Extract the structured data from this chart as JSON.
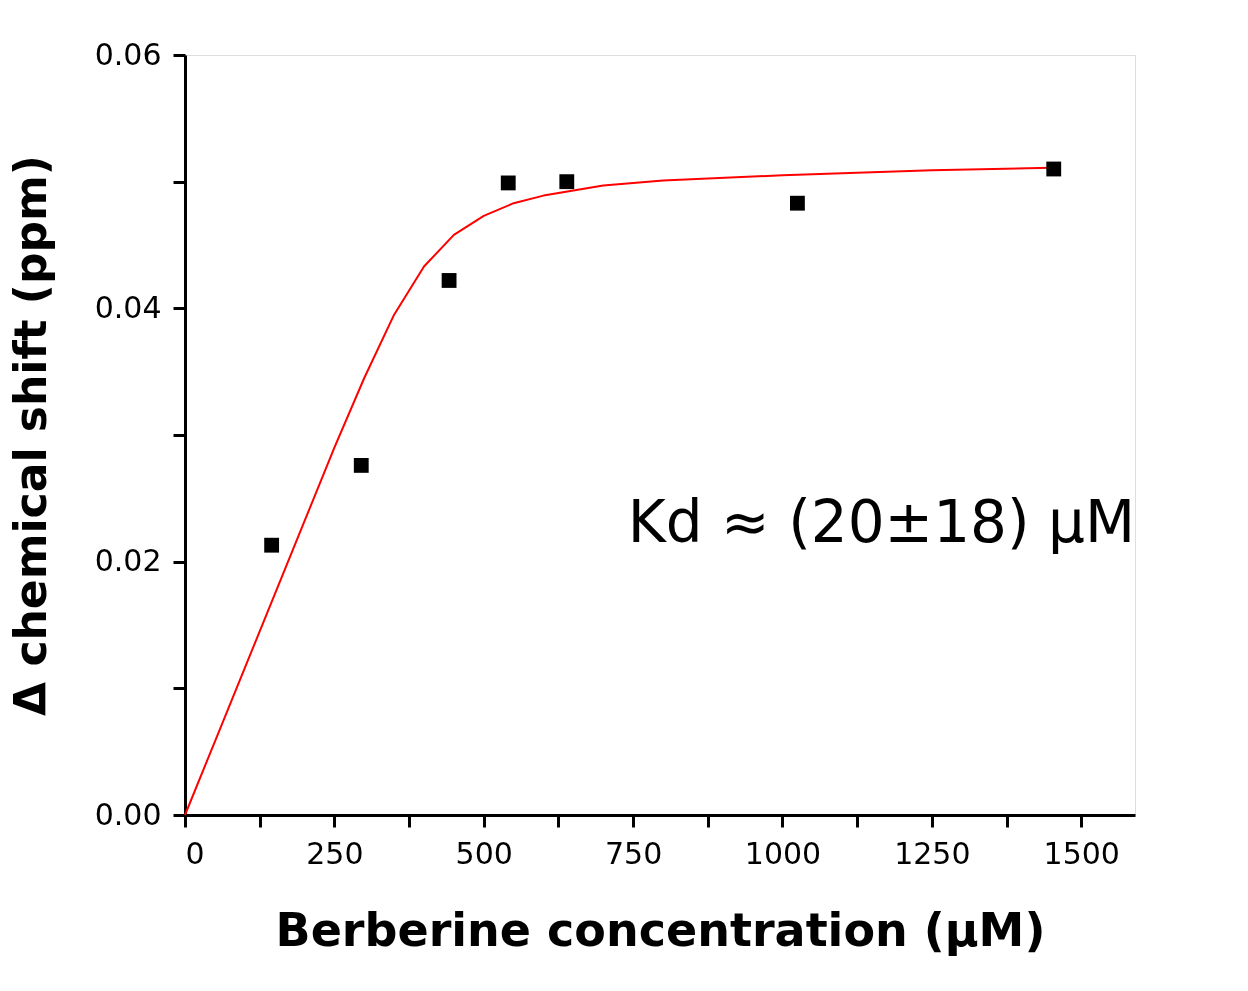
{
  "chart_data": {
    "type": "scatter",
    "xlabel": "Berberine concentration (μM)",
    "ylabel": "Δ chemical shift (ppm)",
    "annotations": [
      "Kd ≈ (20±18) μM"
    ],
    "xlim": [
      0,
      1590
    ],
    "ylim": [
      0,
      0.06
    ],
    "xticks": [
      0,
      {
        "value": 125,
        "label": null
      },
      250,
      {
        "value": 375,
        "label": null
      },
      500,
      {
        "value": 625,
        "label": null
      },
      750,
      {
        "value": 875,
        "label": null
      },
      1000,
      {
        "value": 1125,
        "label": null
      },
      1250,
      {
        "value": 1375,
        "label": null
      },
      1500
    ],
    "yticks": [
      {
        "value": 0,
        "label": "0.00"
      },
      {
        "value": 0.01,
        "label": null
      },
      {
        "value": 0.02,
        "label": "0.02"
      },
      {
        "value": 0.03,
        "label": null
      },
      {
        "value": 0.04,
        "label": "0.04"
      },
      {
        "value": 0.05,
        "label": null
      },
      {
        "value": 0.06,
        "label": "0.06"
      }
    ],
    "grid": false,
    "series": [
      {
        "type": "line",
        "color": "#ff0000",
        "x": [
          0,
          50,
          100,
          150,
          200,
          250,
          300,
          350,
          400,
          450,
          500,
          550,
          600,
          700,
          800,
          1000,
          1250,
          1450
        ],
        "values": [
          0,
          0.0058,
          0.0116,
          0.0174,
          0.0232,
          0.029,
          0.0345,
          0.0395,
          0.0433,
          0.0458,
          0.0473,
          0.0483,
          0.0489,
          0.0497,
          0.0501,
          0.0505,
          0.0509,
          0.0511
        ]
      },
      {
        "color": "#000000",
        "marker": "square",
        "x": [
          145,
          295,
          442,
          541,
          639,
          1025,
          1454
        ],
        "values": [
          0.0213,
          0.0276,
          0.0422,
          0.0499,
          0.05,
          0.0483,
          0.051
        ]
      }
    ]
  }
}
